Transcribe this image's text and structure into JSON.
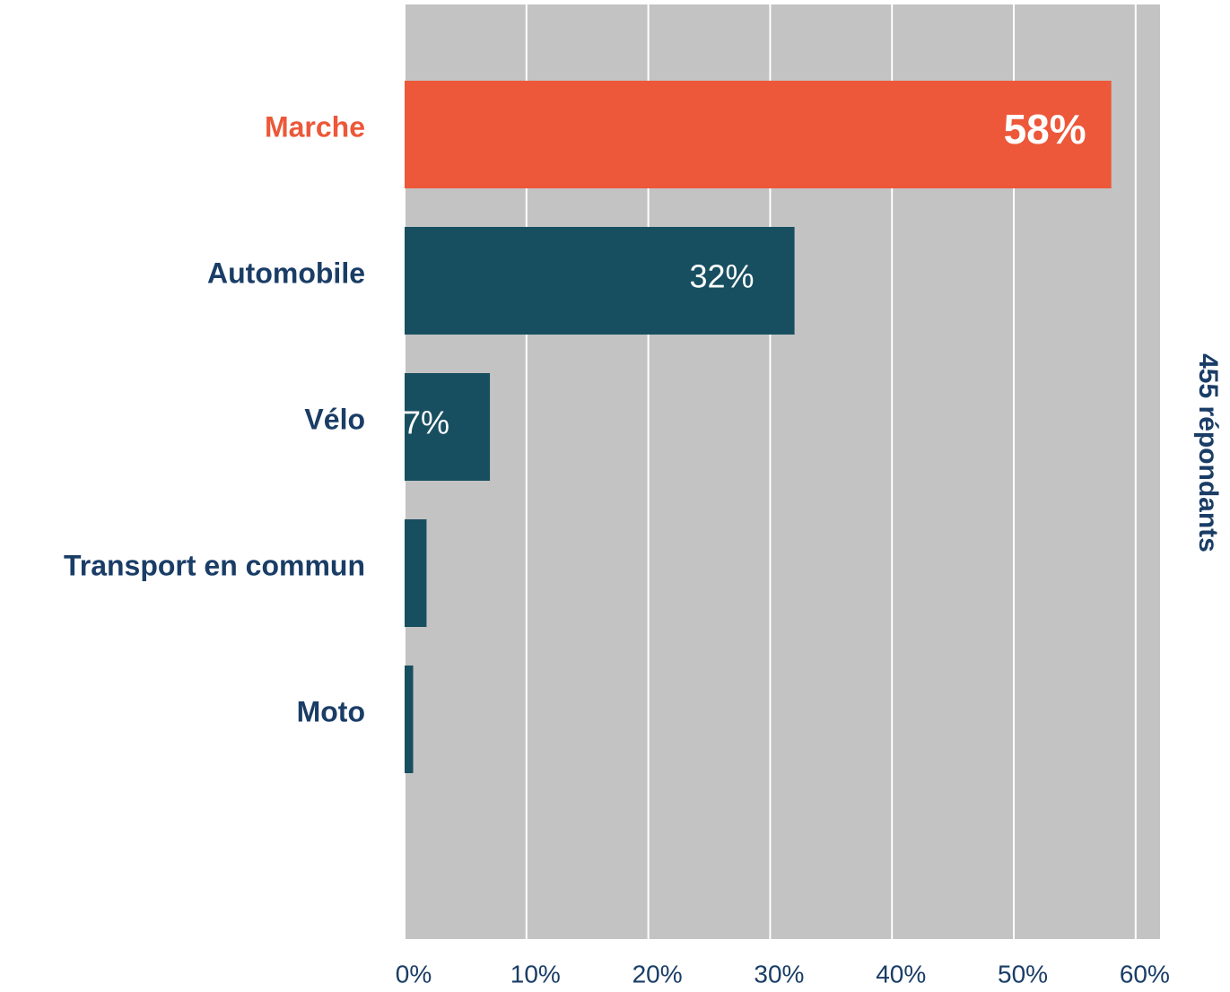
{
  "chart_data": {
    "type": "hbar",
    "categories": [
      "Marche",
      "Automobile",
      "Vélo",
      "Transport en commun",
      "Moto"
    ],
    "values": [
      58,
      32,
      7,
      1.8,
      0.7
    ],
    "value_labels": [
      "58%",
      "32%",
      "7%",
      null,
      null
    ],
    "colors": [
      "#ec5839",
      "#174f60",
      "#174f60",
      "#174f60",
      "#174f60"
    ],
    "label_colors": [
      "#ec5839",
      "#1a3d66",
      "#1a3d66",
      "#1a3d66",
      "#1a3d66"
    ],
    "xlim": [
      0,
      62
    ],
    "xticks": [
      {
        "value": 0,
        "label": "0%"
      },
      {
        "value": 10,
        "label": "10%"
      },
      {
        "value": 20,
        "label": "20%"
      },
      {
        "value": 30,
        "label": "30%"
      },
      {
        "value": 40,
        "label": "40%"
      },
      {
        "value": 50,
        "label": "50%"
      },
      {
        "value": 60,
        "label": "60%"
      }
    ],
    "grid": true,
    "side_label": "455 répondants"
  }
}
